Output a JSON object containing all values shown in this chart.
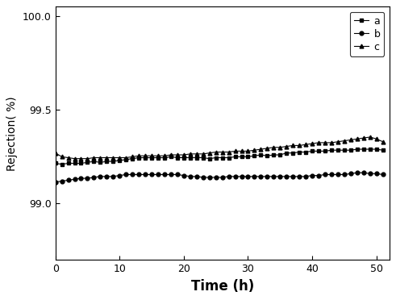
{
  "title": "",
  "xlabel": "Time (h)",
  "ylabel": "Rejection( %)",
  "xlim": [
    0,
    52
  ],
  "ylim": [
    98.7,
    100.05
  ],
  "xticks": [
    0,
    10,
    20,
    30,
    40,
    50
  ],
  "yticks": [
    99.0,
    99.5,
    100.0
  ],
  "series_a": {
    "label": "a",
    "marker": "s",
    "color": "#000000",
    "x": [
      0,
      1,
      2,
      3,
      4,
      5,
      6,
      7,
      8,
      9,
      10,
      11,
      12,
      13,
      14,
      15,
      16,
      17,
      18,
      19,
      20,
      21,
      22,
      23,
      24,
      25,
      26,
      27,
      28,
      29,
      30,
      31,
      32,
      33,
      34,
      35,
      36,
      37,
      38,
      39,
      40,
      41,
      42,
      43,
      44,
      45,
      46,
      47,
      48,
      49,
      50,
      51
    ],
    "y": [
      99.215,
      99.21,
      99.215,
      99.215,
      99.215,
      99.22,
      99.225,
      99.22,
      99.225,
      99.225,
      99.23,
      99.235,
      99.24,
      99.245,
      99.245,
      99.245,
      99.245,
      99.245,
      99.25,
      99.245,
      99.245,
      99.245,
      99.245,
      99.245,
      99.24,
      99.245,
      99.245,
      99.245,
      99.25,
      99.25,
      99.25,
      99.255,
      99.26,
      99.255,
      99.26,
      99.26,
      99.27,
      99.27,
      99.275,
      99.275,
      99.28,
      99.28,
      99.28,
      99.285,
      99.285,
      99.285,
      99.285,
      99.29,
      99.29,
      99.29,
      99.29,
      99.285
    ]
  },
  "series_b": {
    "label": "b",
    "marker": "o",
    "color": "#000000",
    "x": [
      0,
      1,
      2,
      3,
      4,
      5,
      6,
      7,
      8,
      9,
      10,
      11,
      12,
      13,
      14,
      15,
      16,
      17,
      18,
      19,
      20,
      21,
      22,
      23,
      24,
      25,
      26,
      27,
      28,
      29,
      30,
      31,
      32,
      33,
      34,
      35,
      36,
      37,
      38,
      39,
      40,
      41,
      42,
      43,
      44,
      45,
      46,
      47,
      48,
      49,
      50,
      51
    ],
    "y": [
      99.115,
      99.12,
      99.125,
      99.13,
      99.135,
      99.135,
      99.14,
      99.145,
      99.145,
      99.145,
      99.15,
      99.155,
      99.155,
      99.155,
      99.155,
      99.155,
      99.155,
      99.155,
      99.155,
      99.155,
      99.15,
      99.145,
      99.145,
      99.14,
      99.14,
      99.14,
      99.14,
      99.145,
      99.145,
      99.145,
      99.145,
      99.145,
      99.145,
      99.145,
      99.145,
      99.145,
      99.145,
      99.145,
      99.145,
      99.145,
      99.15,
      99.15,
      99.155,
      99.155,
      99.155,
      99.155,
      99.16,
      99.165,
      99.165,
      99.16,
      99.16,
      99.155
    ]
  },
  "series_c": {
    "label": "c",
    "marker": "^",
    "color": "#000000",
    "x": [
      0,
      1,
      2,
      3,
      4,
      5,
      6,
      7,
      8,
      9,
      10,
      11,
      12,
      13,
      14,
      15,
      16,
      17,
      18,
      19,
      20,
      21,
      22,
      23,
      24,
      25,
      26,
      27,
      28,
      29,
      30,
      31,
      32,
      33,
      34,
      35,
      36,
      37,
      38,
      39,
      40,
      41,
      42,
      43,
      44,
      45,
      46,
      47,
      48,
      49,
      50,
      51
    ],
    "y": [
      99.27,
      99.25,
      99.245,
      99.24,
      99.24,
      99.24,
      99.245,
      99.245,
      99.245,
      99.245,
      99.245,
      99.245,
      99.25,
      99.255,
      99.255,
      99.255,
      99.255,
      99.255,
      99.26,
      99.26,
      99.26,
      99.265,
      99.265,
      99.265,
      99.27,
      99.275,
      99.275,
      99.275,
      99.28,
      99.28,
      99.28,
      99.285,
      99.29,
      99.295,
      99.3,
      99.3,
      99.305,
      99.31,
      99.31,
      99.315,
      99.32,
      99.325,
      99.325,
      99.325,
      99.33,
      99.335,
      99.34,
      99.345,
      99.35,
      99.355,
      99.345,
      99.33
    ]
  },
  "legend_loc": "upper right",
  "markersize": 3.5,
  "linewidth": 0.8,
  "background_color": "#ffffff",
  "xlabel_fontsize": 12,
  "ylabel_fontsize": 10,
  "tick_labelsize": 9
}
